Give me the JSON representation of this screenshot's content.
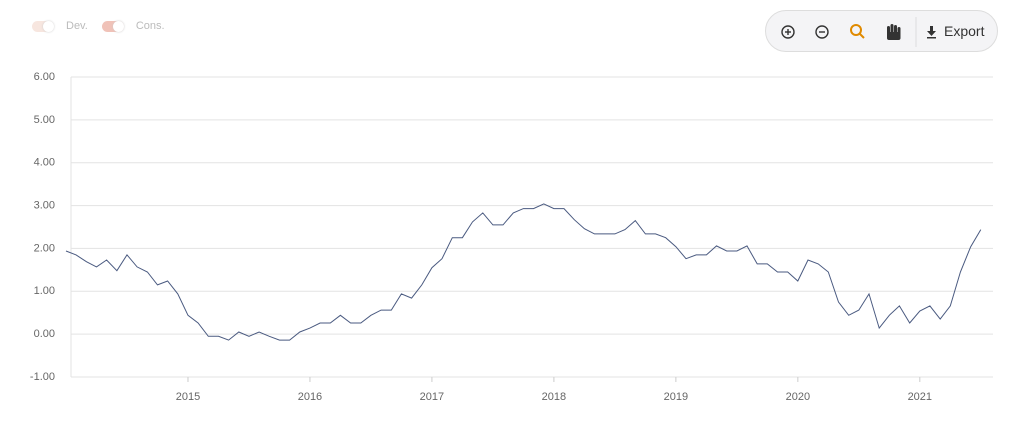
{
  "ui": {
    "legend": [
      "Dev.",
      "Cons."
    ],
    "export": "Export"
  },
  "chart_data": {
    "type": "line",
    "color": "#4a5a80",
    "grid": true,
    "xlim": [
      2014,
      2021.6
    ],
    "xticks": [
      2015,
      2016,
      2017,
      2018,
      2019,
      2020,
      2021
    ],
    "ylim": [
      -1,
      6
    ],
    "yticks": [
      {
        "value": -1,
        "label": "-1.00"
      },
      {
        "value": 0,
        "label": "0.00"
      },
      {
        "value": 1,
        "label": "1.00"
      },
      {
        "value": 2,
        "label": "2.00"
      },
      {
        "value": 3,
        "label": "3.00"
      },
      {
        "value": 4,
        "label": "4.00"
      },
      {
        "value": 5,
        "label": "5.00"
      },
      {
        "value": 6,
        "label": "6.00"
      }
    ],
    "x": [
      2014,
      2014.083,
      2014.167,
      2014.25,
      2014.333,
      2014.417,
      2014.5,
      2014.583,
      2014.667,
      2014.75,
      2014.833,
      2014.917,
      2015,
      2015.083,
      2015.167,
      2015.25,
      2015.333,
      2015.417,
      2015.5,
      2015.583,
      2015.667,
      2015.75,
      2015.833,
      2015.917,
      2016,
      2016.083,
      2016.167,
      2016.25,
      2016.333,
      2016.417,
      2016.5,
      2016.583,
      2016.667,
      2016.75,
      2016.833,
      2016.917,
      2017,
      2017.083,
      2017.167,
      2017.25,
      2017.333,
      2017.417,
      2017.5,
      2017.583,
      2017.667,
      2017.75,
      2017.833,
      2017.917,
      2018,
      2018.083,
      2018.167,
      2018.25,
      2018.333,
      2018.417,
      2018.5,
      2018.583,
      2018.667,
      2018.75,
      2018.833,
      2018.917,
      2019,
      2019.083,
      2019.167,
      2019.25,
      2019.333,
      2019.417,
      2019.5,
      2019.583,
      2019.667,
      2019.75,
      2019.833,
      2019.917,
      2020,
      2020.083,
      2020.167,
      2020.25,
      2020.333,
      2020.417,
      2020.5,
      2020.583,
      2020.667,
      2020.75,
      2020.833,
      2020.917,
      2021,
      2021.083,
      2021.167,
      2021.25,
      2021.333,
      2021.417,
      2021.5
    ],
    "values": [
      1.94,
      1.85,
      1.69,
      1.57,
      1.73,
      1.48,
      1.85,
      1.57,
      1.45,
      1.15,
      1.24,
      0.94,
      0.44,
      0.26,
      -0.05,
      -0.05,
      -0.14,
      0.05,
      -0.05,
      0.05,
      -0.05,
      -0.14,
      -0.14,
      0.05,
      0.14,
      0.26,
      0.26,
      0.44,
      0.26,
      0.26,
      0.44,
      0.56,
      0.56,
      0.94,
      0.84,
      1.15,
      1.55,
      1.76,
      2.25,
      2.25,
      2.62,
      2.83,
      2.55,
      2.55,
      2.83,
      2.93,
      2.93,
      3.04,
      2.93,
      2.93,
      2.67,
      2.46,
      2.34,
      2.34,
      2.34,
      2.44,
      2.65,
      2.34,
      2.34,
      2.25,
      2.04,
      1.76,
      1.85,
      1.85,
      2.06,
      1.94,
      1.94,
      2.06,
      1.64,
      1.64,
      1.45,
      1.45,
      1.24,
      1.73,
      1.64,
      1.45,
      0.75,
      0.44,
      0.56,
      0.94,
      0.14,
      0.44,
      0.66,
      0.26,
      0.54,
      0.66,
      0.35,
      0.66,
      1.45,
      2.04,
      2.44
    ]
  }
}
